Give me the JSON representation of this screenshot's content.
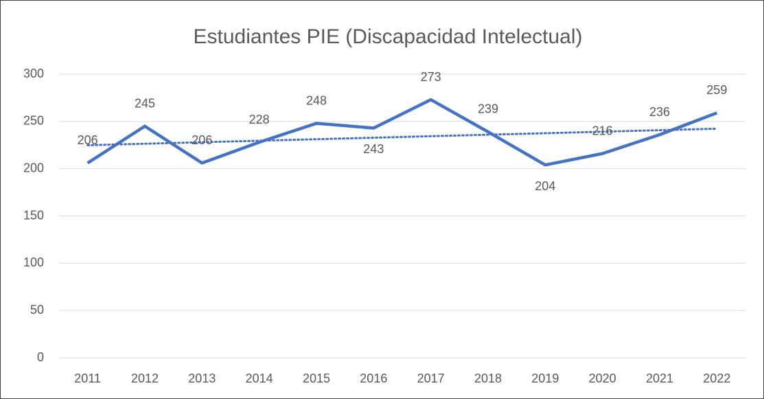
{
  "chart_data": {
    "type": "line",
    "title": "Estudiantes PIE (Discapacidad Intelectual)",
    "categories": [
      "2011",
      "2012",
      "2013",
      "2014",
      "2015",
      "2016",
      "2017",
      "2018",
      "2019",
      "2020",
      "2021",
      "2022"
    ],
    "series": [
      {
        "name": "Estudiantes",
        "color": "#4472c4",
        "values": [
          206,
          245,
          206,
          228,
          248,
          243,
          273,
          239,
          204,
          216,
          236,
          259
        ]
      }
    ],
    "ylim": [
      0,
      300
    ],
    "yticks": [
      0,
      50,
      100,
      150,
      200,
      250,
      300
    ],
    "grid": true,
    "trendline": "linear",
    "data_labels": true
  }
}
